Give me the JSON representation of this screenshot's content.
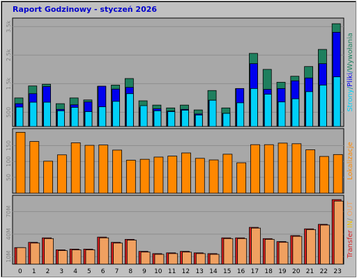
{
  "title": "Raport Godzinowy -  styczeń 2026",
  "colors": {
    "background": "#C0C0C0",
    "panel": "#A8A8A8",
    "grid": "#8E8E8E",
    "strony": "#1E7F5E",
    "pliki": "#0000EE",
    "wywolania": "#00D0F8",
    "lokalizacje": "#FF8800",
    "wyjscie": "#D81E1E",
    "wejscie": "#F0A060"
  },
  "chart_data": [
    {
      "type": "bar",
      "categories": [
        "0",
        "1",
        "2",
        "3",
        "4",
        "5",
        "6",
        "7",
        "8",
        "9",
        "10",
        "11",
        "12",
        "13",
        "14",
        "15",
        "16",
        "17",
        "18",
        "19",
        "20",
        "21",
        "22",
        "23"
      ],
      "yticks": [
        "500",
        "1.5k",
        "2.5k",
        "3.5k"
      ],
      "ylim": [
        0,
        3700
      ],
      "series_label": {
        "parts": [
          "Strony",
          "/",
          "Pliki",
          "/",
          "Wywołania"
        ]
      },
      "series": [
        {
          "key": "strony",
          "values": [
            1000,
            1420,
            1480,
            800,
            1000,
            930,
            1410,
            1450,
            1680,
            900,
            750,
            650,
            750,
            580,
            1260,
            650,
            1330,
            2560,
            2000,
            1550,
            1760,
            2100,
            2700,
            3600
          ]
        },
        {
          "key": "pliki",
          "values": [
            800,
            1150,
            1400,
            600,
            760,
            860,
            1410,
            1310,
            1370,
            660,
            620,
            540,
            600,
            440,
            920,
            460,
            1330,
            2200,
            1300,
            1330,
            1600,
            1700,
            2200,
            3300
          ]
        },
        {
          "key": "wywolania",
          "values": [
            680,
            850,
            850,
            550,
            670,
            520,
            690,
            880,
            1150,
            730,
            550,
            520,
            570,
            400,
            920,
            460,
            830,
            1330,
            1130,
            860,
            970,
            1220,
            1450,
            1740
          ]
        }
      ]
    },
    {
      "type": "bar",
      "categories": [
        "0",
        "1",
        "2",
        "3",
        "4",
        "5",
        "6",
        "7",
        "8",
        "9",
        "10",
        "11",
        "12",
        "13",
        "14",
        "15",
        "16",
        "17",
        "18",
        "19",
        "20",
        "21",
        "22",
        "23"
      ],
      "yticks": [
        "50",
        "100",
        "150"
      ],
      "ylim": [
        0,
        195
      ],
      "series_label": {
        "parts": [
          "Lokalizacje"
        ]
      },
      "series": [
        {
          "key": "lokalizacje",
          "values": [
            192,
            163,
            101,
            121,
            159,
            151,
            152,
            136,
            104,
            107,
            114,
            117,
            127,
            110,
            105,
            123,
            96,
            153,
            153,
            158,
            156,
            137,
            116,
            122
          ]
        }
      ]
    },
    {
      "type": "bar",
      "categories": [
        "0",
        "1",
        "2",
        "3",
        "4",
        "5",
        "6",
        "7",
        "8",
        "9",
        "10",
        "11",
        "12",
        "13",
        "14",
        "15",
        "16",
        "17",
        "18",
        "19",
        "20",
        "21",
        "22",
        "23"
      ],
      "yticks": [
        "10M",
        "40M",
        "70M"
      ],
      "ylim": [
        0,
        88
      ],
      "series_label": {
        "parts": [
          "Transfer",
          "IN",
          "/",
          "OUT"
        ]
      },
      "series": [
        {
          "key": "wyjscie",
          "values": [
            22,
            29,
            35,
            19,
            20,
            20,
            36,
            29,
            33,
            17,
            14,
            15,
            17,
            15,
            14,
            35,
            35,
            49,
            34,
            30,
            38,
            47,
            53,
            86
          ]
        },
        {
          "key": "wejscie",
          "values": [
            22,
            28,
            34,
            18,
            19,
            19,
            35,
            28,
            32,
            16,
            13,
            14,
            16,
            14,
            13,
            34,
            34,
            48,
            33,
            29,
            37,
            46,
            52,
            84
          ]
        }
      ]
    }
  ]
}
